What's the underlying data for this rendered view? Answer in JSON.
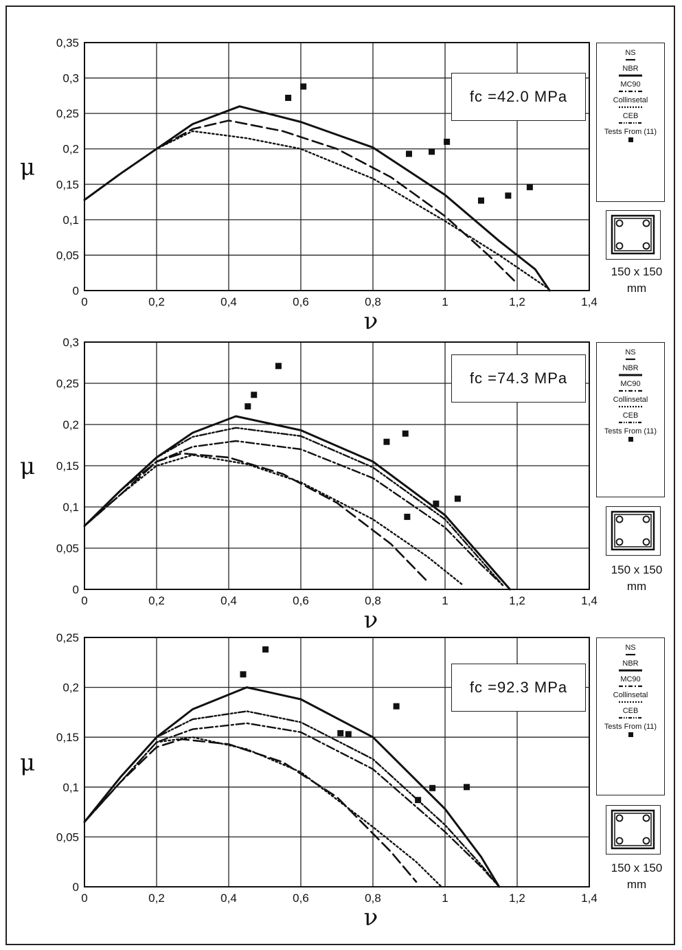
{
  "section": {
    "caption_dims": "150 x 150",
    "caption_unit": "mm"
  },
  "legend_entries": [
    {
      "label": "NS",
      "style": "solid-short"
    },
    {
      "label": "NBR",
      "style": "solid-thick"
    },
    {
      "label": "MC90",
      "style": "dashdot"
    },
    {
      "label": "Collinsetal",
      "style": "dotted"
    },
    {
      "label": "CEB",
      "style": "dashdotdot"
    },
    {
      "label": "Tests From (11)",
      "style": "square"
    }
  ],
  "chart_data": [
    {
      "type": "line",
      "annotation": "fc =42.0 MPa",
      "xlabel": "ν",
      "ylabel": "μ",
      "xlim": [
        0,
        1.4
      ],
      "ylim": [
        0,
        0.35
      ],
      "xticks": [
        "0",
        "0,2",
        "0,4",
        "0,6",
        "0,8",
        "1",
        "1,2",
        "1,4"
      ],
      "yticks": [
        "0",
        "0,05",
        "0,1",
        "0,15",
        "0,2",
        "0,25",
        "0,3",
        "0,35"
      ],
      "grid": true,
      "series": [
        {
          "style": "solid",
          "x": [
            0,
            0.1,
            0.2,
            0.3,
            0.43,
            0.6,
            0.8,
            1.0,
            1.15,
            1.25,
            1.29
          ],
          "y": [
            0.128,
            0.165,
            0.2,
            0.235,
            0.26,
            0.238,
            0.202,
            0.135,
            0.07,
            0.03,
            0
          ]
        },
        {
          "style": "dashed",
          "x": [
            0,
            0.1,
            0.2,
            0.3,
            0.4,
            0.55,
            0.7,
            0.85,
            1.0,
            1.12,
            1.2
          ],
          "y": [
            0.128,
            0.165,
            0.2,
            0.228,
            0.24,
            0.225,
            0.2,
            0.16,
            0.105,
            0.05,
            0.01
          ]
        },
        {
          "style": "dotted",
          "x": [
            0,
            0.1,
            0.2,
            0.3,
            0.45,
            0.6,
            0.8,
            1.0,
            1.15,
            1.28
          ],
          "y": [
            0.128,
            0.165,
            0.2,
            0.225,
            0.215,
            0.2,
            0.158,
            0.098,
            0.05,
            0.005
          ]
        }
      ],
      "points": {
        "x": [
          0.565,
          0.607,
          0.9,
          0.963,
          1.005,
          1.1,
          1.175,
          1.235
        ],
        "y": [
          0.272,
          0.288,
          0.193,
          0.196,
          0.21,
          0.127,
          0.134,
          0.146
        ]
      }
    },
    {
      "type": "line",
      "annotation": "fc =74.3 MPa",
      "xlabel": "ν",
      "ylabel": "μ",
      "xlim": [
        0,
        1.4
      ],
      "ylim": [
        0,
        0.3
      ],
      "xticks": [
        "0",
        "0,2",
        "0,4",
        "0,6",
        "0,8",
        "1",
        "1,2",
        "1,4"
      ],
      "yticks": [
        "0",
        "0,05",
        "0,1",
        "0,15",
        "0,2",
        "0,25",
        "0,3"
      ],
      "grid": true,
      "series": [
        {
          "style": "solid",
          "x": [
            0,
            0.1,
            0.2,
            0.3,
            0.42,
            0.6,
            0.8,
            1.0,
            1.12,
            1.18
          ],
          "y": [
            0.077,
            0.12,
            0.16,
            0.19,
            0.21,
            0.193,
            0.155,
            0.09,
            0.03,
            0
          ]
        },
        {
          "style": "dashdotdot",
          "x": [
            0,
            0.1,
            0.2,
            0.3,
            0.42,
            0.6,
            0.8,
            1.0,
            1.1,
            1.16
          ],
          "y": [
            0.077,
            0.12,
            0.16,
            0.185,
            0.196,
            0.186,
            0.148,
            0.085,
            0.035,
            0.005
          ]
        },
        {
          "style": "dashdot",
          "x": [
            0,
            0.1,
            0.2,
            0.3,
            0.42,
            0.6,
            0.8,
            1.0,
            1.1,
            1.16
          ],
          "y": [
            0.077,
            0.12,
            0.155,
            0.173,
            0.18,
            0.17,
            0.135,
            0.075,
            0.03,
            0.005
          ]
        },
        {
          "style": "dashed",
          "x": [
            0,
            0.1,
            0.2,
            0.27,
            0.4,
            0.55,
            0.7,
            0.85,
            0.95
          ],
          "y": [
            0.077,
            0.115,
            0.155,
            0.165,
            0.16,
            0.14,
            0.105,
            0.055,
            0.01
          ]
        },
        {
          "style": "dotted",
          "x": [
            0,
            0.1,
            0.2,
            0.3,
            0.45,
            0.6,
            0.8,
            0.95,
            1.05
          ],
          "y": [
            0.077,
            0.115,
            0.15,
            0.163,
            0.152,
            0.13,
            0.085,
            0.04,
            0.005
          ]
        }
      ],
      "points": {
        "x": [
          0.453,
          0.47,
          0.538,
          0.838,
          0.89,
          0.895,
          0.975,
          1.035
        ],
        "y": [
          0.222,
          0.236,
          0.271,
          0.179,
          0.189,
          0.088,
          0.104,
          0.11
        ]
      }
    },
    {
      "type": "line",
      "annotation": "fc =92.3 MPa",
      "xlabel": "ν",
      "ylabel": "μ",
      "xlim": [
        0,
        1.4
      ],
      "ylim": [
        0,
        0.25
      ],
      "xticks": [
        "0",
        "0,2",
        "0,4",
        "0,6",
        "0,8",
        "1",
        "1,2",
        "1,4"
      ],
      "yticks": [
        "0",
        "0,05",
        "0,1",
        "0,15",
        "0,2",
        "0,25"
      ],
      "grid": true,
      "series": [
        {
          "style": "solid",
          "x": [
            0,
            0.1,
            0.2,
            0.3,
            0.45,
            0.6,
            0.8,
            1.0,
            1.1,
            1.15
          ],
          "y": [
            0.065,
            0.11,
            0.15,
            0.178,
            0.2,
            0.188,
            0.15,
            0.078,
            0.03,
            0
          ]
        },
        {
          "style": "dashdotdot",
          "x": [
            0,
            0.1,
            0.2,
            0.3,
            0.45,
            0.6,
            0.8,
            1.0,
            1.1,
            1.15
          ],
          "y": [
            0.065,
            0.11,
            0.15,
            0.168,
            0.176,
            0.165,
            0.128,
            0.062,
            0.022,
            0
          ]
        },
        {
          "style": "dashdot",
          "x": [
            0,
            0.1,
            0.2,
            0.3,
            0.45,
            0.6,
            0.8,
            1.0,
            1.1,
            1.15
          ],
          "y": [
            0.065,
            0.105,
            0.145,
            0.158,
            0.164,
            0.155,
            0.118,
            0.055,
            0.02,
            0
          ]
        },
        {
          "style": "dashed",
          "x": [
            0,
            0.1,
            0.2,
            0.27,
            0.4,
            0.55,
            0.7,
            0.85,
            0.92
          ],
          "y": [
            0.065,
            0.105,
            0.14,
            0.148,
            0.143,
            0.125,
            0.09,
            0.035,
            0.005
          ]
        },
        {
          "style": "dotted",
          "x": [
            0,
            0.1,
            0.2,
            0.3,
            0.45,
            0.6,
            0.8,
            0.92,
            0.99
          ],
          "y": [
            0.065,
            0.105,
            0.145,
            0.15,
            0.138,
            0.115,
            0.06,
            0.025,
            0
          ]
        }
      ],
      "points": {
        "x": [
          0.44,
          0.502,
          0.71,
          0.732,
          0.865,
          0.925,
          0.965,
          1.06
        ],
        "y": [
          0.213,
          0.238,
          0.154,
          0.153,
          0.181,
          0.087,
          0.099,
          0.1
        ]
      }
    }
  ]
}
